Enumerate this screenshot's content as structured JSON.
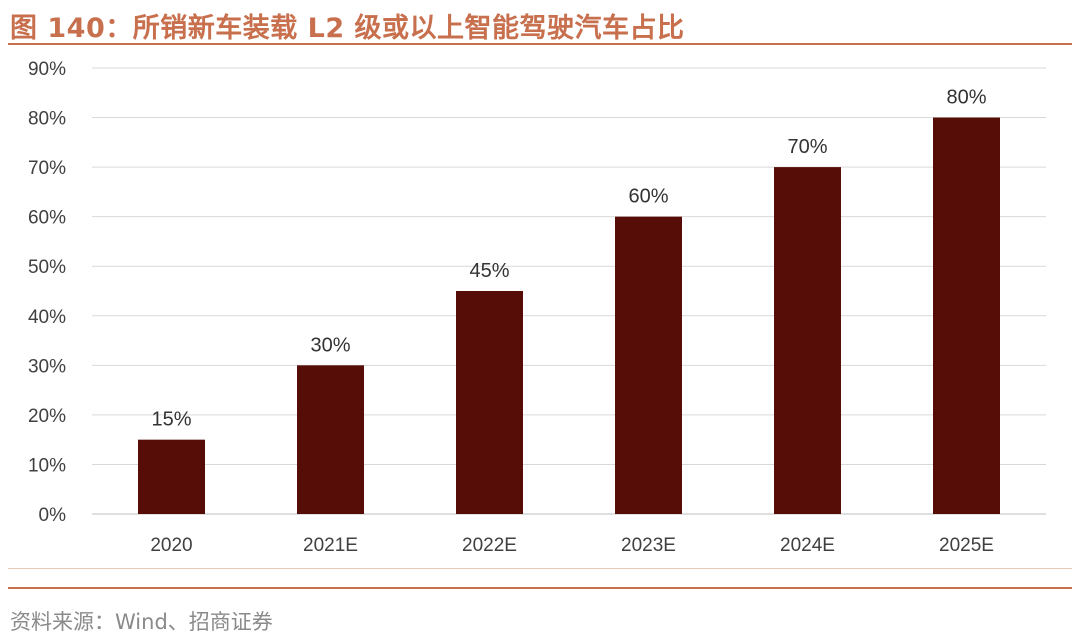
{
  "header": {
    "title": "图 140：所销新车装载 L2 级或以上智能驾驶汽车占比"
  },
  "footer": {
    "source": "资料来源：Wind、招商证券"
  },
  "chart_data": {
    "type": "bar",
    "title": "图 140：所销新车装载 L2 级或以上智能驾驶汽车占比",
    "categories": [
      "2020",
      "2021E",
      "2022E",
      "2023E",
      "2024E",
      "2025E"
    ],
    "values": [
      15,
      30,
      45,
      60,
      70,
      80
    ],
    "data_labels": [
      "15%",
      "30%",
      "45%",
      "60%",
      "70%",
      "80%"
    ],
    "y_ticks": [
      "0%",
      "10%",
      "20%",
      "30%",
      "40%",
      "50%",
      "60%",
      "70%",
      "80%",
      "90%"
    ],
    "ylim": [
      0,
      90
    ],
    "xlabel": "",
    "ylabel": "",
    "grid": true,
    "legend": "none",
    "bar_color": "#560C07",
    "grid_color": "#d9d9d9"
  }
}
